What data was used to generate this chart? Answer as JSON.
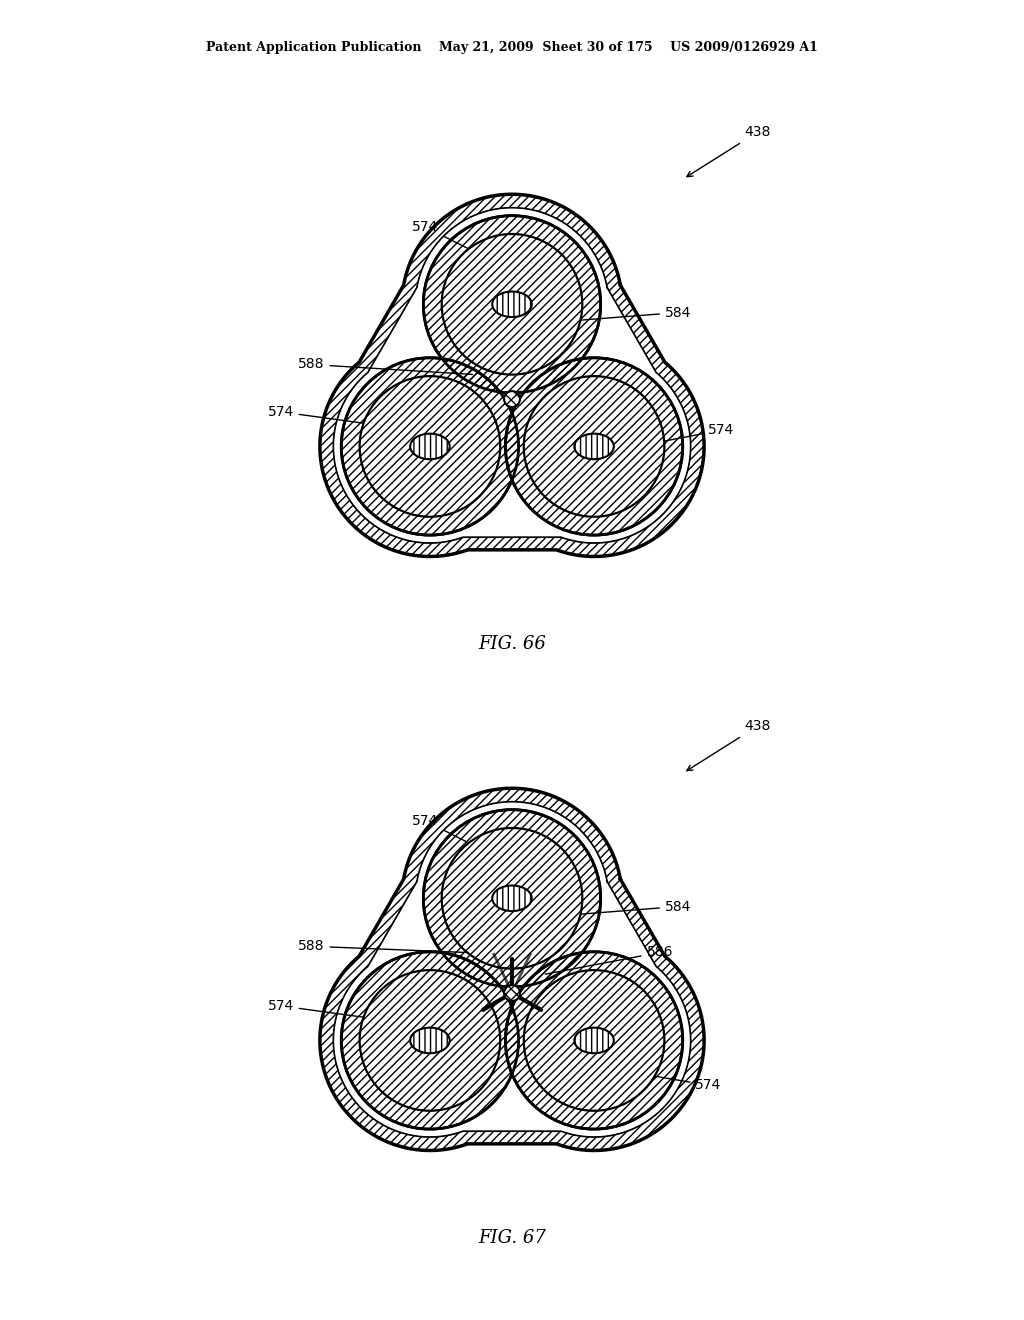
{
  "bg_color": "#ffffff",
  "line_color": "#000000",
  "hatch_color": "#000000",
  "fill_color": "#d8d8d8",
  "header_text": "Patent Application Publication    May 21, 2009  Sheet 30 of 175    US 2009/0126929 A1",
  "fig66_label": "FIG. 66",
  "fig67_label": "FIG. 67",
  "label_438_1": "438",
  "label_574_top1": "574",
  "label_584_1": "584",
  "label_588_1": "588",
  "label_574_left1": "574",
  "label_574_right1": "574",
  "label_438_2": "438",
  "label_574_top2": "574",
  "label_584_2": "584",
  "label_588_2": "588",
  "label_586_2": "586",
  "label_574_left2": "574",
  "label_574_right2": "574",
  "lw_outer": 2.5,
  "lw_inner": 1.8,
  "lw_cable": 1.5
}
